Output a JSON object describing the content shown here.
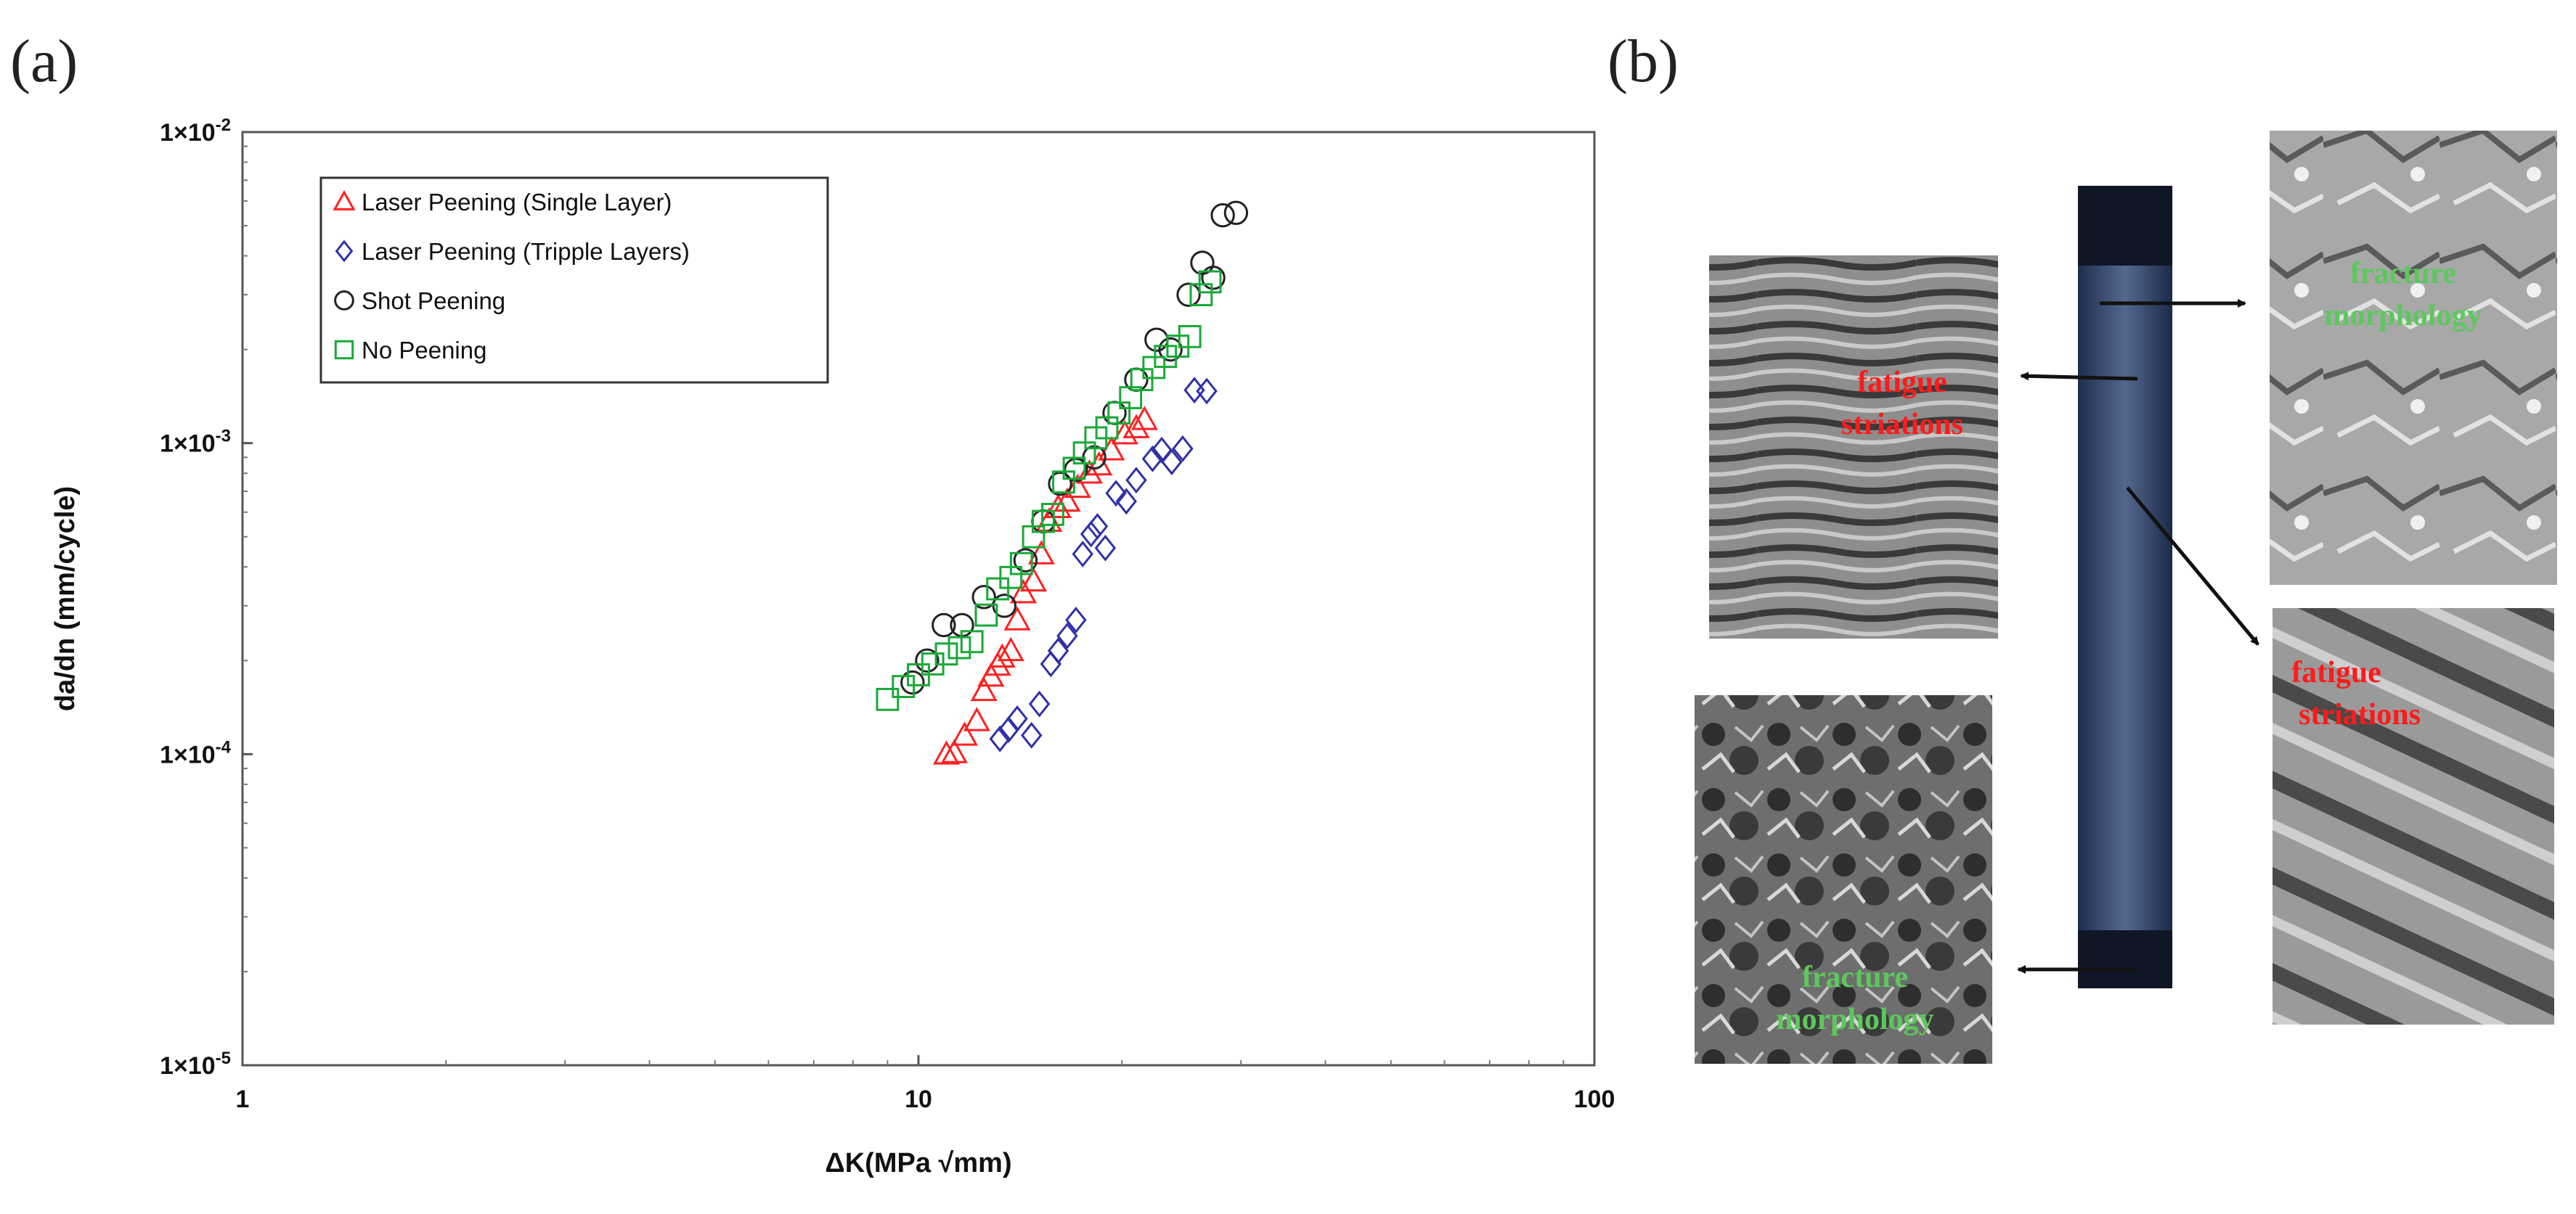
{
  "panels": {
    "a": "(a)",
    "b": "(b)"
  },
  "chart_data": {
    "type": "scatter",
    "xscale": "log",
    "yscale": "log",
    "xlim": [
      1,
      100
    ],
    "ylim": [
      1e-05,
      0.01
    ],
    "xlabel": "ΔK(MPa √mm)",
    "ylabel": "da/dn (mm/cycle)",
    "xticks": [
      "1",
      "10",
      "100"
    ],
    "yticks": [
      "1×10",
      "1×10",
      "1×10",
      "1×10"
    ],
    "ytick_exponents": [
      "-5",
      "-4",
      "-3",
      "-2"
    ],
    "legend_position": "top-left",
    "series": [
      {
        "name": "Laser Peening (Single Layer)",
        "marker": "triangle",
        "color": "#ff2020",
        "points": [
          [
            11.0,
            0.0001
          ],
          [
            11.3,
            0.000101
          ],
          [
            11.7,
            0.000115
          ],
          [
            12.2,
            0.000128
          ],
          [
            12.5,
            0.00016
          ],
          [
            12.8,
            0.000178
          ],
          [
            13.1,
            0.000193
          ],
          [
            13.3,
            0.000205
          ],
          [
            13.7,
            0.000215
          ],
          [
            14.0,
            0.00027
          ],
          [
            14.3,
            0.00033
          ],
          [
            14.8,
            0.00036
          ],
          [
            15.2,
            0.00044
          ],
          [
            15.6,
            0.00056
          ],
          [
            16.1,
            0.00062
          ],
          [
            16.6,
            0.00065
          ],
          [
            17.2,
            0.00072
          ],
          [
            17.9,
            0.0008
          ],
          [
            18.5,
            0.00085
          ],
          [
            19.3,
            0.00095
          ],
          [
            20.2,
            0.00107
          ],
          [
            21.0,
            0.00112
          ],
          [
            21.6,
            0.00119
          ]
        ]
      },
      {
        "name": "Laser Peening (Tripple Layers)",
        "marker": "diamond",
        "color": "#3030a8",
        "points": [
          [
            13.2,
            0.000112
          ],
          [
            13.6,
            0.00012
          ],
          [
            14.0,
            0.00013
          ],
          [
            14.7,
            0.000115
          ],
          [
            15.1,
            0.000145
          ],
          [
            15.7,
            0.000195
          ],
          [
            16.1,
            0.000215
          ],
          [
            16.6,
            0.00024
          ],
          [
            17.1,
            0.00027
          ],
          [
            17.5,
            0.00044
          ],
          [
            18.0,
            0.00051
          ],
          [
            18.4,
            0.00054
          ],
          [
            18.9,
            0.00046
          ],
          [
            19.6,
            0.00069
          ],
          [
            20.3,
            0.00065
          ],
          [
            21.0,
            0.00076
          ],
          [
            22.2,
            0.00089
          ],
          [
            22.9,
            0.00095
          ],
          [
            23.7,
            0.00087
          ],
          [
            24.6,
            0.00096
          ],
          [
            25.6,
            0.00148
          ],
          [
            26.7,
            0.00147
          ]
        ]
      },
      {
        "name": "Shot Peening",
        "marker": "circle",
        "color": "#222222",
        "points": [
          [
            9.8,
            0.00017
          ],
          [
            10.3,
            0.0002
          ],
          [
            10.9,
            0.00026
          ],
          [
            11.6,
            0.00026
          ],
          [
            12.5,
            0.00032
          ],
          [
            13.4,
            0.0003
          ],
          [
            14.4,
            0.00042
          ],
          [
            15.3,
            0.00056
          ],
          [
            16.2,
            0.00074
          ],
          [
            17.1,
            0.00082
          ],
          [
            18.2,
            0.0009
          ],
          [
            19.5,
            0.00125
          ],
          [
            21.0,
            0.0016
          ],
          [
            22.5,
            0.00215
          ],
          [
            23.6,
            0.002
          ],
          [
            25.1,
            0.003
          ],
          [
            26.3,
            0.0038
          ],
          [
            27.3,
            0.0034
          ],
          [
            28.2,
            0.0054
          ],
          [
            29.5,
            0.0055
          ]
        ]
      },
      {
        "name": "No Peening",
        "marker": "square",
        "color": "#1aa838",
        "points": [
          [
            9.0,
            0.00015
          ],
          [
            9.5,
            0.000165
          ],
          [
            10.0,
            0.00018
          ],
          [
            10.5,
            0.000195
          ],
          [
            11.0,
            0.00021
          ],
          [
            11.5,
            0.00022
          ],
          [
            12.0,
            0.00023
          ],
          [
            12.6,
            0.00028
          ],
          [
            13.1,
            0.00034
          ],
          [
            13.7,
            0.00037
          ],
          [
            14.2,
            0.00041
          ],
          [
            14.8,
            0.0005
          ],
          [
            15.3,
            0.00056
          ],
          [
            15.8,
            0.00059
          ],
          [
            16.4,
            0.00075
          ],
          [
            17.0,
            0.00083
          ],
          [
            17.6,
            0.00093
          ],
          [
            18.3,
            0.00104
          ],
          [
            19.0,
            0.00112
          ],
          [
            19.8,
            0.00125
          ],
          [
            20.6,
            0.0014
          ],
          [
            21.4,
            0.0016
          ],
          [
            22.3,
            0.00175
          ],
          [
            23.2,
            0.0019
          ],
          [
            24.2,
            0.00205
          ],
          [
            25.2,
            0.0022
          ],
          [
            26.2,
            0.003
          ],
          [
            27.0,
            0.0033
          ]
        ]
      }
    ]
  },
  "photos": {
    "top_left_line1": "fatigue",
    "top_left_line2": "striations",
    "top_right_line1": "fracture",
    "top_right_line2": "morphology",
    "mid_right_line1": "fatigue",
    "mid_right_line2": "striations",
    "bottom_left_line1": "fracture",
    "bottom_left_line2": "morphology",
    "label_colors": {
      "striations": "#ff1a1a",
      "morphology": "#5cc85c"
    }
  }
}
